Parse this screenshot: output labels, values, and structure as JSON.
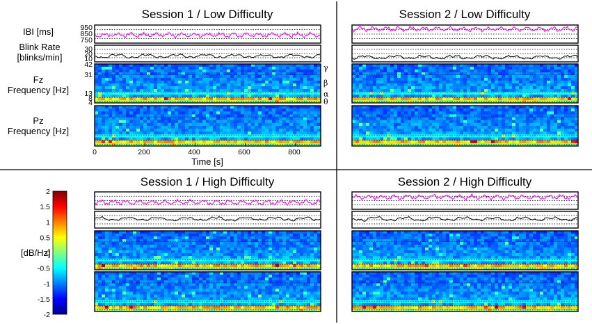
{
  "chart_data": {
    "type": "heatmap",
    "description_units": "Time in seconds; heart IBI in ms; blink rate in blinks/min; spectrogram power in dB/Hz",
    "panels": [
      {
        "title": "Session 1 / Low Difficulty",
        "ibi_level": 0.45,
        "blink_level": 0.35
      },
      {
        "title": "Session 2 / Low Difficulty",
        "ibi_level": 0.78,
        "blink_level": 0.28
      },
      {
        "title": "Session 1 / High Difficulty",
        "ibi_level": 0.4,
        "blink_level": 0.55
      },
      {
        "title": "Session 2 / High Difficulty",
        "ibi_level": 0.7,
        "blink_level": 0.55
      }
    ],
    "ibi": {
      "label": "IBI [ms]",
      "ticks": [
        "950",
        "850",
        "750"
      ],
      "ylim": [
        750,
        950
      ]
    },
    "blink": {
      "label_line1": "Blink Rate",
      "label_line2": "[blinks/min]",
      "ticks": [
        "30",
        "20",
        "10"
      ],
      "ylim": [
        0,
        30
      ]
    },
    "fz": {
      "label_line1": "Fz",
      "label_line2": "Frequency [Hz]",
      "ticks": [
        "42",
        "31",
        "13",
        "8",
        "4"
      ]
    },
    "pz": {
      "label_line1": "Pz",
      "label_line2": "Frequency [Hz]"
    },
    "bands": [
      "γ",
      "β",
      "α",
      "θ"
    ],
    "xaxis": {
      "label": "Time [s]",
      "ticks": [
        "0",
        "200",
        "400",
        "600",
        "800"
      ],
      "xlim": [
        0,
        900
      ]
    },
    "colorbar": {
      "label": "[dB/Hz]",
      "ticks": [
        "2",
        "1.5",
        "1",
        "0.5",
        "0",
        "-0.5",
        "-1",
        "-1.5",
        "-2"
      ],
      "range": [
        -2,
        2
      ]
    },
    "colors": {
      "ibi": "#ff00ff",
      "blink": "#000000",
      "grid": "#000000"
    }
  }
}
